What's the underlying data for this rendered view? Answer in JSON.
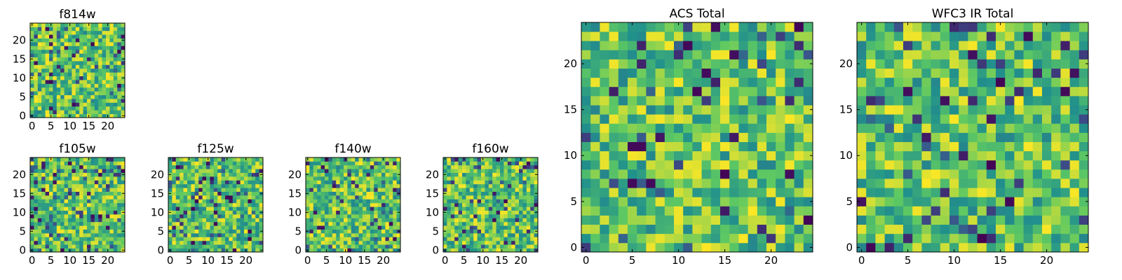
{
  "figure": {
    "colormap": "viridis",
    "colormap_stops": [
      "#440154",
      "#3b528b",
      "#21918c",
      "#5ec962",
      "#fde725"
    ]
  },
  "chart_data": [
    {
      "id": "f814w",
      "type": "heatmap",
      "title": "f814w",
      "xlabel": "",
      "ylabel": "",
      "grid_size": [
        25,
        25
      ],
      "xlim": [
        -0.5,
        24.5
      ],
      "ylim": [
        -0.5,
        24.5
      ],
      "x_ticks": [
        "0",
        "5",
        "10",
        "15",
        "20"
      ],
      "y_ticks": [
        "0",
        "5",
        "10",
        "15",
        "20"
      ],
      "grid": false,
      "values_note": "random per-pixel noise field, normalized 0-1",
      "seed": 11
    },
    {
      "id": "f105w",
      "type": "heatmap",
      "title": "f105w",
      "xlabel": "",
      "ylabel": "",
      "grid_size": [
        25,
        25
      ],
      "xlim": [
        -0.5,
        24.5
      ],
      "ylim": [
        -0.5,
        24.5
      ],
      "x_ticks": [
        "0",
        "5",
        "10",
        "15",
        "20"
      ],
      "y_ticks": [
        "0",
        "5",
        "10",
        "15",
        "20"
      ],
      "grid": false,
      "seed": 23
    },
    {
      "id": "f125w",
      "type": "heatmap",
      "title": "f125w",
      "xlabel": "",
      "ylabel": "",
      "grid_size": [
        25,
        25
      ],
      "xlim": [
        -0.5,
        24.5
      ],
      "ylim": [
        -0.5,
        24.5
      ],
      "x_ticks": [
        "0",
        "5",
        "10",
        "15",
        "20"
      ],
      "y_ticks": [
        "0",
        "5",
        "10",
        "15",
        "20"
      ],
      "grid": false,
      "seed": 37
    },
    {
      "id": "f140w",
      "type": "heatmap",
      "title": "f140w",
      "xlabel": "",
      "ylabel": "",
      "grid_size": [
        25,
        25
      ],
      "xlim": [
        -0.5,
        24.5
      ],
      "ylim": [
        -0.5,
        24.5
      ],
      "x_ticks": [
        "0",
        "5",
        "10",
        "15",
        "20"
      ],
      "y_ticks": [
        "0",
        "5",
        "10",
        "15",
        "20"
      ],
      "grid": false,
      "seed": 41
    },
    {
      "id": "f160w",
      "type": "heatmap",
      "title": "f160w",
      "xlabel": "",
      "ylabel": "",
      "grid_size": [
        25,
        25
      ],
      "xlim": [
        -0.5,
        24.5
      ],
      "ylim": [
        -0.5,
        24.5
      ],
      "x_ticks": [
        "0",
        "5",
        "10",
        "15",
        "20"
      ],
      "y_ticks": [
        "0",
        "5",
        "10",
        "15",
        "20"
      ],
      "grid": false,
      "seed": 53
    },
    {
      "id": "acs_total",
      "type": "heatmap",
      "title": "ACS Total",
      "xlabel": "",
      "ylabel": "",
      "grid_size": [
        25,
        25
      ],
      "xlim": [
        -0.5,
        24.5
      ],
      "ylim": [
        -0.5,
        24.5
      ],
      "x_ticks": [
        "0",
        "5",
        "10",
        "15",
        "20"
      ],
      "y_ticks": [
        "0",
        "5",
        "10",
        "15",
        "20"
      ],
      "grid": false,
      "seed": 67
    },
    {
      "id": "wfc3_ir_total",
      "type": "heatmap",
      "title": "WFC3 IR Total",
      "xlabel": "",
      "ylabel": "",
      "grid_size": [
        25,
        25
      ],
      "xlim": [
        -0.5,
        24.5
      ],
      "ylim": [
        -0.5,
        24.5
      ],
      "x_ticks": [
        "0",
        "5",
        "10",
        "15",
        "20"
      ],
      "y_ticks": [
        "0",
        "5",
        "10",
        "15",
        "20"
      ],
      "grid": false,
      "seed": 79
    }
  ]
}
